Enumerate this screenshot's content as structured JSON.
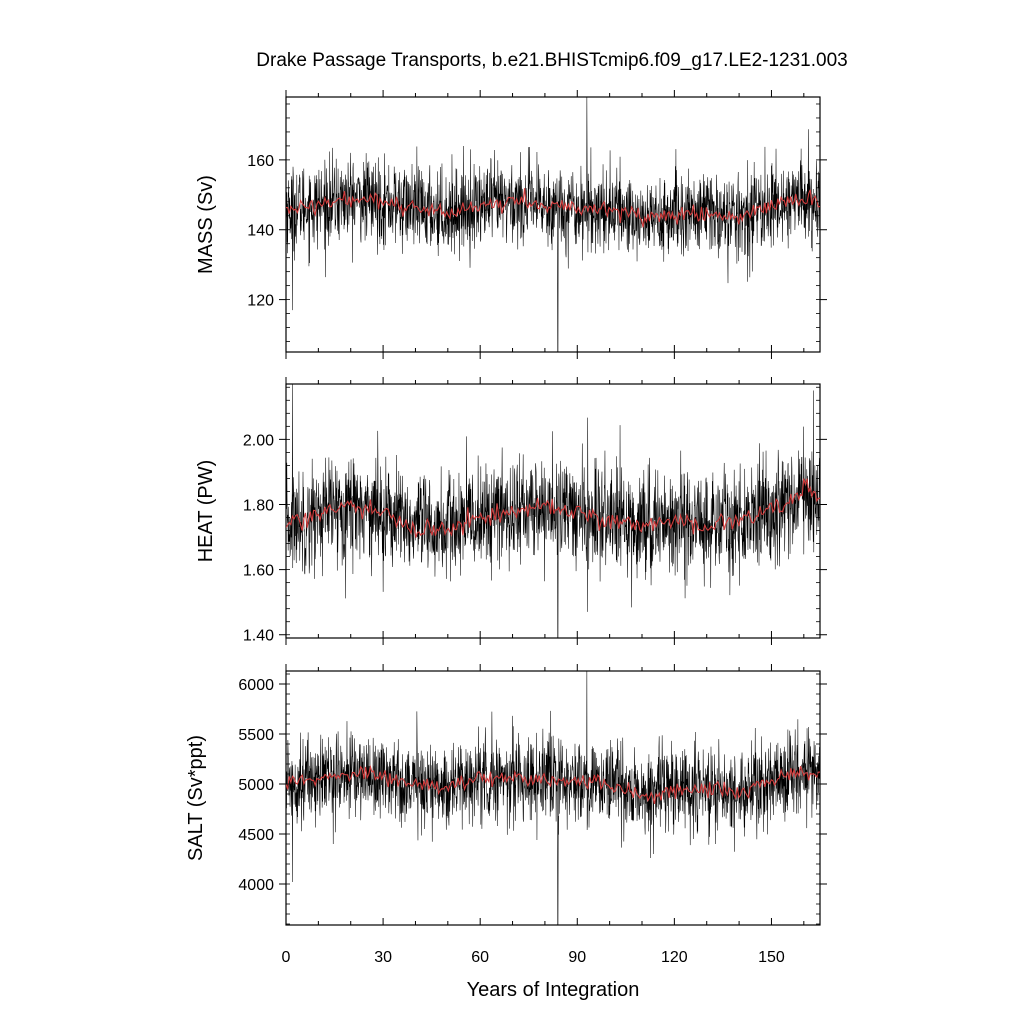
{
  "figure": {
    "title": "Drake Passage Transports, b.e21.BHISTcmip6.f09_g17.LE2-1231.003",
    "xlabel": "Years of Integration"
  },
  "colors": {
    "monthly": "#000000",
    "annual": "#d23c3c"
  },
  "chart_data": [
    {
      "type": "line",
      "name": "mass",
      "ylabel": "MASS (Sv)",
      "xlim": [
        0,
        165
      ],
      "ylim": [
        105,
        178
      ],
      "xticks": [
        0,
        30,
        60,
        90,
        120,
        150
      ],
      "yticks": [
        120,
        140,
        160
      ],
      "ytick_labels": [
        "120",
        "140",
        "160"
      ],
      "series": [
        {
          "style": "monthly-noisy",
          "mean_profile_x": [
            0,
            10,
            20,
            30,
            40,
            50,
            60,
            70,
            80,
            90,
            100,
            110,
            120,
            130,
            140,
            150,
            160,
            165
          ],
          "mean_profile_y": [
            146,
            147,
            149,
            148,
            146,
            145,
            147,
            148,
            147,
            146,
            146,
            143,
            144,
            145,
            143,
            147,
            149,
            147
          ],
          "noise_sd": 6,
          "spikes": [
            {
              "x": 84,
              "y": 105
            },
            {
              "x": 93,
              "y": 178
            },
            {
              "x": 2,
              "y": 117
            }
          ]
        },
        {
          "style": "annual-mean",
          "x": [
            0,
            10,
            20,
            30,
            40,
            50,
            60,
            70,
            80,
            90,
            100,
            110,
            120,
            130,
            140,
            150,
            160,
            165
          ],
          "y": [
            146,
            147,
            149,
            148,
            146,
            145,
            147,
            148,
            147,
            146,
            146,
            143,
            144,
            145,
            143,
            147,
            149,
            147
          ]
        }
      ]
    },
    {
      "type": "line",
      "name": "heat",
      "ylabel": "HEAT (PW)",
      "xlim": [
        0,
        165
      ],
      "ylim": [
        1.39,
        2.17
      ],
      "xticks": [
        0,
        30,
        60,
        90,
        120,
        150
      ],
      "yticks": [
        1.4,
        1.6,
        1.8,
        2.0
      ],
      "ytick_labels": [
        "1.40",
        "1.60",
        "1.80",
        "2.00"
      ],
      "series": [
        {
          "style": "monthly-noisy",
          "mean_profile_x": [
            0,
            10,
            20,
            30,
            40,
            50,
            60,
            70,
            80,
            90,
            100,
            110,
            120,
            130,
            140,
            150,
            160,
            165
          ],
          "mean_profile_y": [
            1.74,
            1.77,
            1.8,
            1.78,
            1.72,
            1.73,
            1.76,
            1.78,
            1.79,
            1.77,
            1.75,
            1.74,
            1.75,
            1.74,
            1.75,
            1.79,
            1.84,
            1.82
          ],
          "noise_sd": 0.08,
          "spikes": [
            {
              "x": 2,
              "y": 2.17
            },
            {
              "x": 84,
              "y": 1.39
            },
            {
              "x": 163,
              "y": 2.15
            }
          ]
        },
        {
          "style": "annual-mean",
          "x": [
            0,
            10,
            20,
            30,
            40,
            50,
            60,
            70,
            80,
            90,
            100,
            110,
            120,
            130,
            140,
            150,
            160,
            165
          ],
          "y": [
            1.74,
            1.77,
            1.8,
            1.78,
            1.72,
            1.73,
            1.76,
            1.78,
            1.79,
            1.77,
            1.75,
            1.74,
            1.75,
            1.74,
            1.75,
            1.79,
            1.84,
            1.82
          ]
        }
      ]
    },
    {
      "type": "line",
      "name": "salt",
      "ylabel": "SALT (Sv*ppt)",
      "xlim": [
        0,
        165
      ],
      "ylim": [
        3590,
        6130
      ],
      "xticks": [
        0,
        30,
        60,
        90,
        120,
        150
      ],
      "yticks": [
        4000,
        4500,
        5000,
        5500,
        6000
      ],
      "ytick_labels": [
        "4000",
        "4500",
        "5000",
        "5500",
        "6000"
      ],
      "series": [
        {
          "style": "monthly-noisy",
          "mean_profile_x": [
            0,
            10,
            20,
            30,
            40,
            50,
            60,
            70,
            80,
            90,
            100,
            110,
            120,
            130,
            140,
            150,
            160,
            165
          ],
          "mean_profile_y": [
            5030,
            5060,
            5100,
            5080,
            5000,
            4980,
            5050,
            5070,
            5050,
            5000,
            5000,
            4880,
            4920,
            4960,
            4900,
            5040,
            5120,
            5060
          ],
          "noise_sd": 210,
          "spikes": [
            {
              "x": 84,
              "y": 3590
            },
            {
              "x": 93,
              "y": 6130
            },
            {
              "x": 2,
              "y": 4020
            }
          ]
        },
        {
          "style": "annual-mean",
          "x": [
            0,
            10,
            20,
            30,
            40,
            50,
            60,
            70,
            80,
            90,
            100,
            110,
            120,
            130,
            140,
            150,
            160,
            165
          ],
          "y": [
            5030,
            5060,
            5100,
            5080,
            5000,
            4980,
            5050,
            5070,
            5050,
            5000,
            5000,
            4880,
            4920,
            4960,
            4900,
            5040,
            5120,
            5060
          ]
        }
      ]
    }
  ]
}
